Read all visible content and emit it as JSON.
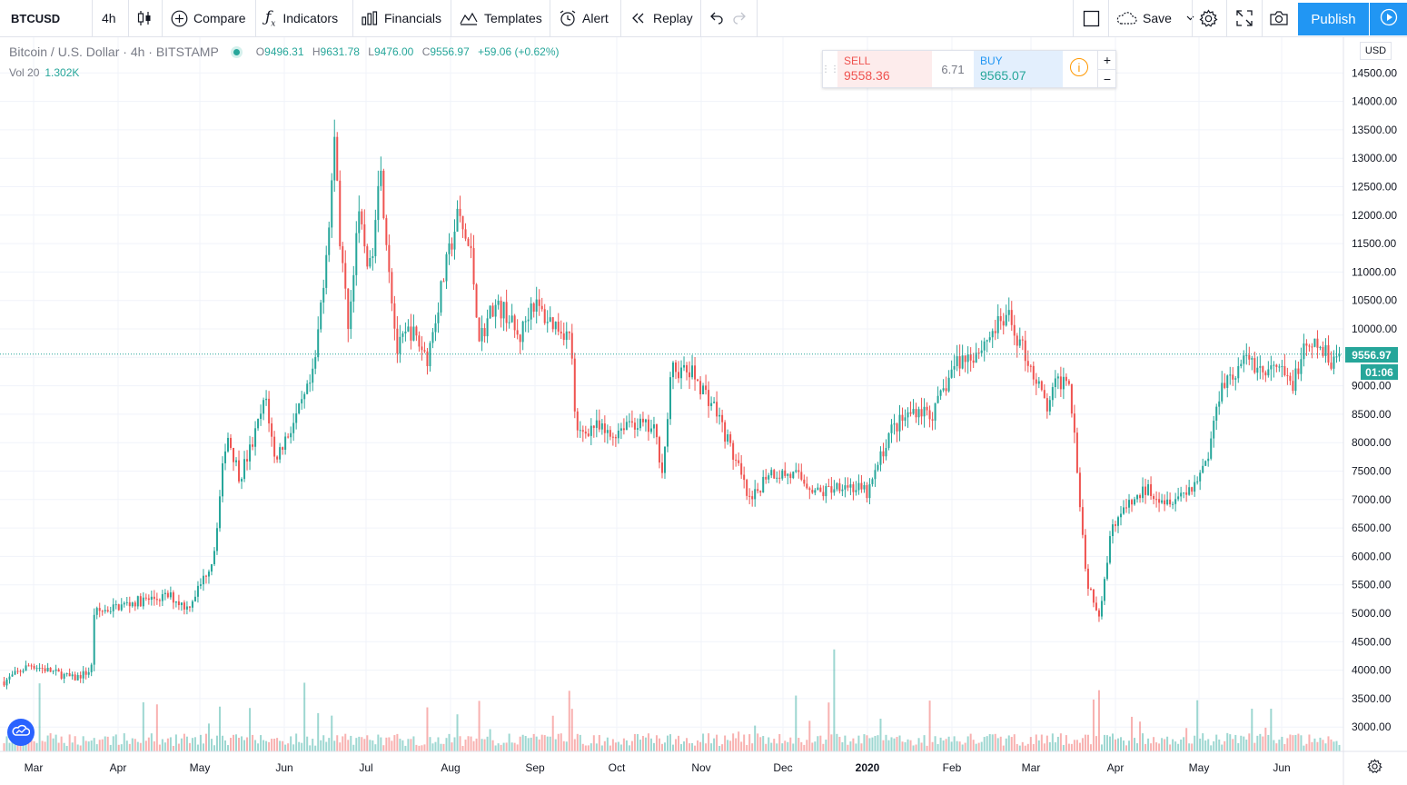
{
  "toolbar": {
    "symbol": "BTCUSD",
    "interval": "4h",
    "compare_label": "Compare",
    "indicators_label": "Indicators",
    "financials_label": "Financials",
    "templates_label": "Templates",
    "alert_label": "Alert",
    "replay_label": "Replay",
    "save_label": "Save",
    "publish_label": "Publish"
  },
  "legend": {
    "title": "Bitcoin / U.S. Dollar · 4h · BITSTAMP",
    "open_label": "O",
    "open": "9496.31",
    "high_label": "H",
    "high": "9631.78",
    "low_label": "L",
    "low": "9476.00",
    "close_label": "C",
    "close": "9556.97",
    "change": "+59.06 (+0.62%)",
    "vol_label": "Vol 20",
    "vol_value": "1.302K"
  },
  "trade": {
    "sell_label": "SELL",
    "sell_price": "9558.36",
    "spread": "6.71",
    "buy_label": "BUY",
    "buy_price": "9565.07",
    "info_icon": "i",
    "plus": "+",
    "minus": "−"
  },
  "price_scale": {
    "currency": "USD",
    "current_price": "9556.97",
    "countdown": "01:06"
  },
  "colors": {
    "up": "#26a69a",
    "down": "#ef5350",
    "accent": "#2196f3"
  },
  "chart_data": {
    "type": "candlestick",
    "series_name": "Bitcoin / U.S. Dollar",
    "ylim": [
      2600,
      15300
    ],
    "y_ticks": [
      3000,
      3500,
      4000,
      4500,
      5000,
      5500,
      6000,
      6500,
      7000,
      7500,
      8000,
      8500,
      9000,
      9500,
      10000,
      10500,
      11000,
      11500,
      12000,
      12500,
      13000,
      13500,
      14000,
      14500
    ],
    "x_ticks": [
      "Mar",
      "Apr",
      "May",
      "Jun",
      "Jul",
      "Aug",
      "Sep",
      "Oct",
      "Nov",
      "Dec",
      "2020",
      "Feb",
      "Mar",
      "Apr",
      "May",
      "Jun"
    ],
    "path_points": [
      [
        0,
        3800
      ],
      [
        0.3,
        4100
      ],
      [
        0.8,
        3850
      ],
      [
        1.0,
        4000
      ],
      [
        1.02,
        5000
      ],
      [
        1.5,
        5200
      ],
      [
        1.9,
        5300
      ],
      [
        2.1,
        5100
      ],
      [
        2.25,
        5500
      ],
      [
        2.4,
        6000
      ],
      [
        2.55,
        8200
      ],
      [
        2.7,
        7400
      ],
      [
        2.85,
        8000
      ],
      [
        3.0,
        8800
      ],
      [
        3.1,
        7700
      ],
      [
        3.2,
        8000
      ],
      [
        3.4,
        8600
      ],
      [
        3.55,
        9200
      ],
      [
        3.7,
        11500
      ],
      [
        3.8,
        13500
      ],
      [
        3.85,
        11500
      ],
      [
        3.95,
        10000
      ],
      [
        4.05,
        12000
      ],
      [
        4.2,
        11000
      ],
      [
        4.3,
        13000
      ],
      [
        4.4,
        11300
      ],
      [
        4.5,
        9600
      ],
      [
        4.65,
        10000
      ],
      [
        4.85,
        9500
      ],
      [
        5.05,
        11000
      ],
      [
        5.2,
        12000
      ],
      [
        5.35,
        11300
      ],
      [
        5.45,
        9800
      ],
      [
        5.6,
        10400
      ],
      [
        5.75,
        10300
      ],
      [
        5.9,
        9800
      ],
      [
        6.05,
        10500
      ],
      [
        6.2,
        10200
      ],
      [
        6.4,
        10000
      ],
      [
        6.5,
        9800
      ],
      [
        6.55,
        8100
      ],
      [
        6.75,
        8300
      ],
      [
        6.95,
        8100
      ],
      [
        7.15,
        8400
      ],
      [
        7.45,
        8200
      ],
      [
        7.55,
        7500
      ],
      [
        7.65,
        9300
      ],
      [
        7.9,
        9200
      ],
      [
        8.15,
        8600
      ],
      [
        8.4,
        7600
      ],
      [
        8.55,
        6900
      ],
      [
        8.75,
        7500
      ],
      [
        9.1,
        7400
      ],
      [
        9.35,
        7100
      ],
      [
        9.6,
        7300
      ],
      [
        9.9,
        7100
      ],
      [
        10.15,
        8200
      ],
      [
        10.45,
        8600
      ],
      [
        10.65,
        8500
      ],
      [
        10.9,
        9400
      ],
      [
        11.15,
        9600
      ],
      [
        11.35,
        10000
      ],
      [
        11.5,
        10200
      ],
      [
        11.75,
        9400
      ],
      [
        11.95,
        8600
      ],
      [
        12.05,
        9000
      ],
      [
        12.2,
        9200
      ],
      [
        12.28,
        7900
      ],
      [
        12.4,
        5600
      ],
      [
        12.55,
        5000
      ],
      [
        12.7,
        6600
      ],
      [
        12.9,
        6900
      ],
      [
        13.1,
        7200
      ],
      [
        13.3,
        7000
      ],
      [
        13.5,
        7100
      ],
      [
        13.65,
        7300
      ],
      [
        13.8,
        7800
      ],
      [
        13.95,
        9100
      ],
      [
        14.1,
        9200
      ],
      [
        14.25,
        9500
      ],
      [
        14.45,
        9200
      ],
      [
        14.6,
        9300
      ],
      [
        14.75,
        9000
      ],
      [
        14.9,
        9600
      ],
      [
        15.05,
        9700
      ],
      [
        15.2,
        9450
      ],
      [
        15.3,
        9556.97
      ]
    ],
    "last_price": 9556.97
  }
}
